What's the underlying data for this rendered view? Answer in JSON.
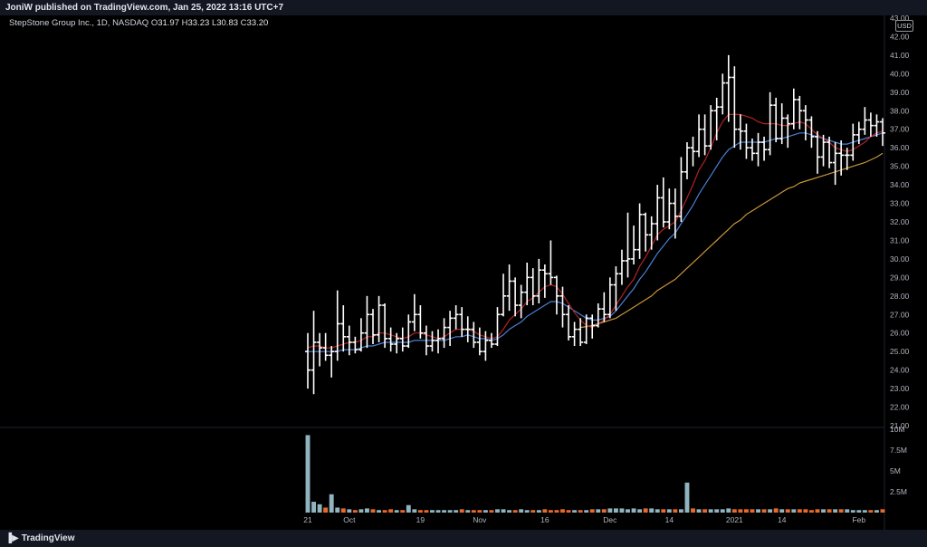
{
  "header": {
    "publisher_text": "JoniW published on TradingView.com, Jan 25, 2022 13:16 UTC+7"
  },
  "legend": {
    "symbol": "StepStone Group Inc., 1D, NASDAQ",
    "o_label": "O",
    "o_value": "31.97",
    "h_label": "H",
    "h_value": "33.23",
    "l_label": "L",
    "l_value": "30.83",
    "c_label": "C",
    "c_value": "33.20"
  },
  "currency_badge": "USD",
  "footer": {
    "brand": "TradingView",
    "brand_icon": "tradingview-logo-icon"
  },
  "colors": {
    "bars": "#ffffff",
    "ma_fast": "#b22222",
    "ma_mid": "#4a7fd4",
    "ma_slow": "#c8963c",
    "vol_up": "#8fb3bf",
    "vol_down": "#e86a2a",
    "grid": "#1a1d26",
    "axis_text": "#b2b5be"
  },
  "chart_data": {
    "type": "ohlc",
    "price_axis": {
      "ylim": [
        21,
        43
      ],
      "ticks": [
        "21.00",
        "22.00",
        "23.00",
        "24.00",
        "25.00",
        "26.00",
        "27.00",
        "28.00",
        "29.00",
        "30.00",
        "31.00",
        "32.00",
        "33.00",
        "34.00",
        "35.00",
        "36.00",
        "37.00",
        "38.00",
        "39.00",
        "40.00",
        "41.00",
        "42.00",
        "43.00"
      ]
    },
    "volume_axis": {
      "ylim": [
        0,
        10
      ],
      "ticks": [
        "2.5M",
        "5M",
        "7.5M",
        "10M"
      ],
      "tick_values": [
        2.5,
        5,
        7.5,
        10
      ]
    },
    "x_ticks": [
      {
        "label": "21",
        "index": 0
      },
      {
        "label": "Oct",
        "index": 7
      },
      {
        "label": "19",
        "index": 19
      },
      {
        "label": "Nov",
        "index": 29
      },
      {
        "label": "16",
        "index": 40
      },
      {
        "label": "Dec",
        "index": 51
      },
      {
        "label": "14",
        "index": 61
      },
      {
        "label": "2021",
        "index": 72
      },
      {
        "label": "14",
        "index": 80
      },
      {
        "label": "Feb",
        "index": 93
      }
    ],
    "ohlc": [
      [
        25.0,
        26.0,
        23.0,
        24.0
      ],
      [
        24.0,
        27.2,
        22.7,
        25.5
      ],
      [
        25.5,
        26.0,
        24.2,
        25.2
      ],
      [
        25.2,
        26.0,
        24.5,
        24.8
      ],
      [
        24.8,
        25.3,
        23.6,
        25.0
      ],
      [
        25.0,
        28.3,
        24.5,
        26.5
      ],
      [
        26.5,
        27.5,
        25.0,
        25.8
      ],
      [
        25.8,
        26.4,
        24.8,
        25.5
      ],
      [
        25.5,
        25.8,
        24.9,
        25.1
      ],
      [
        25.1,
        26.8,
        25.0,
        26.0
      ],
      [
        26.0,
        28.0,
        25.2,
        27.0
      ],
      [
        27.0,
        27.3,
        25.4,
        25.9
      ],
      [
        25.9,
        28.0,
        25.5,
        27.5
      ],
      [
        27.5,
        27.6,
        25.2,
        25.7
      ],
      [
        25.7,
        26.3,
        25.0,
        25.4
      ],
      [
        25.4,
        26.0,
        24.9,
        25.7
      ],
      [
        25.7,
        26.3,
        25.0,
        25.3
      ],
      [
        25.3,
        27.0,
        25.2,
        26.6
      ],
      [
        26.6,
        28.1,
        26.1,
        27.0
      ],
      [
        27.0,
        27.5,
        25.7,
        26.0
      ],
      [
        26.0,
        26.4,
        24.8,
        25.3
      ],
      [
        25.3,
        26.1,
        25.0,
        25.6
      ],
      [
        25.6,
        26.2,
        24.9,
        25.7
      ],
      [
        25.7,
        26.8,
        25.2,
        26.3
      ],
      [
        26.3,
        27.2,
        25.3,
        26.8
      ],
      [
        26.8,
        27.5,
        26.2,
        27.0
      ],
      [
        27.0,
        27.4,
        25.8,
        26.2
      ],
      [
        26.2,
        26.9,
        25.5,
        26.2
      ],
      [
        26.2,
        26.6,
        25.2,
        25.5
      ],
      [
        25.5,
        26.3,
        24.8,
        25.0
      ],
      [
        25.0,
        26.1,
        24.5,
        25.6
      ],
      [
        25.6,
        26.0,
        25.2,
        25.4
      ],
      [
        25.4,
        27.4,
        25.3,
        27.0
      ],
      [
        27.0,
        29.2,
        26.9,
        28.0
      ],
      [
        28.0,
        29.7,
        27.2,
        28.8
      ],
      [
        28.8,
        29.0,
        26.9,
        27.5
      ],
      [
        27.5,
        28.6,
        26.8,
        28.2
      ],
      [
        28.2,
        29.8,
        27.5,
        29.0
      ],
      [
        29.0,
        29.5,
        27.5,
        28.0
      ],
      [
        28.0,
        30.0,
        27.6,
        29.4
      ],
      [
        29.4,
        29.7,
        27.9,
        29.2
      ],
      [
        29.2,
        31.0,
        28.6,
        29.0
      ],
      [
        29.0,
        29.1,
        27.0,
        28.0
      ],
      [
        28.0,
        28.5,
        26.3,
        27.0
      ],
      [
        27.0,
        27.5,
        25.6,
        25.8
      ],
      [
        25.8,
        26.6,
        25.3,
        26.2
      ],
      [
        26.2,
        26.8,
        25.3,
        25.5
      ],
      [
        25.5,
        27.0,
        25.4,
        26.8
      ],
      [
        26.8,
        27.0,
        25.7,
        26.4
      ],
      [
        26.4,
        27.6,
        26.3,
        27.3
      ],
      [
        27.3,
        28.2,
        26.6,
        27.0
      ],
      [
        27.0,
        29.0,
        26.8,
        28.6
      ],
      [
        28.6,
        29.6,
        27.2,
        29.2
      ],
      [
        29.2,
        30.5,
        28.6,
        29.9
      ],
      [
        29.9,
        32.5,
        29.0,
        30.0
      ],
      [
        30.0,
        31.8,
        29.7,
        30.5
      ],
      [
        30.5,
        33.0,
        30.0,
        32.4
      ],
      [
        32.4,
        32.5,
        30.4,
        31.3
      ],
      [
        31.3,
        32.3,
        30.5,
        31.9
      ],
      [
        31.9,
        34.0,
        31.0,
        33.3
      ],
      [
        33.3,
        34.4,
        31.7,
        32.0
      ],
      [
        32.0,
        33.8,
        31.6,
        33.0
      ],
      [
        33.0,
        33.8,
        31.1,
        32.3
      ],
      [
        32.3,
        35.5,
        32.0,
        34.7
      ],
      [
        34.7,
        36.3,
        34.3,
        36.0
      ],
      [
        36.0,
        36.6,
        35.0,
        35.8
      ],
      [
        35.8,
        37.8,
        35.5,
        37.0
      ],
      [
        37.0,
        37.8,
        35.6,
        36.1
      ],
      [
        36.1,
        38.3,
        35.9,
        38.0
      ],
      [
        38.0,
        38.7,
        36.4,
        38.2
      ],
      [
        38.2,
        40.0,
        37.8,
        39.5
      ],
      [
        39.5,
        41.0,
        37.4,
        39.8
      ],
      [
        39.8,
        40.4,
        36.0,
        37.0
      ],
      [
        37.0,
        37.8,
        35.9,
        36.9
      ],
      [
        36.9,
        37.3,
        35.4,
        36.0
      ],
      [
        36.0,
        36.5,
        35.3,
        35.7
      ],
      [
        35.7,
        36.8,
        35.0,
        36.3
      ],
      [
        36.3,
        36.6,
        35.3,
        35.9
      ],
      [
        35.9,
        39.0,
        35.6,
        38.3
      ],
      [
        38.3,
        38.7,
        36.3,
        36.5
      ],
      [
        36.5,
        38.4,
        36.2,
        37.6
      ],
      [
        37.6,
        37.8,
        36.0,
        37.3
      ],
      [
        37.3,
        39.2,
        37.0,
        38.6
      ],
      [
        38.6,
        38.8,
        37.0,
        38.0
      ],
      [
        38.0,
        38.3,
        36.4,
        37.5
      ],
      [
        37.5,
        37.7,
        36.0,
        36.6
      ],
      [
        36.6,
        36.9,
        34.6,
        35.5
      ],
      [
        35.5,
        36.7,
        35.0,
        36.3
      ],
      [
        36.3,
        36.6,
        34.9,
        35.2
      ],
      [
        35.2,
        36.3,
        34.0,
        35.7
      ],
      [
        35.7,
        36.4,
        34.5,
        35.6
      ],
      [
        35.6,
        36.0,
        34.8,
        35.6
      ],
      [
        35.6,
        37.3,
        35.3,
        36.7
      ],
      [
        36.7,
        37.4,
        36.2,
        37.0
      ],
      [
        37.0,
        38.2,
        36.7,
        37.5
      ],
      [
        37.5,
        37.9,
        36.6,
        37.2
      ],
      [
        37.2,
        37.8,
        36.6,
        37.4
      ],
      [
        37.4,
        37.6,
        36.1,
        36.8
      ]
    ],
    "ma_fast": [
      25.2,
      25.3,
      25.3,
      25.2,
      25.2,
      25.3,
      25.4,
      25.5,
      25.5,
      25.6,
      25.8,
      25.8,
      26.0,
      26.0,
      25.9,
      25.8,
      25.7,
      25.8,
      26.0,
      26.0,
      25.9,
      25.8,
      25.7,
      25.8,
      26.0,
      26.2,
      26.2,
      26.2,
      26.1,
      25.9,
      25.8,
      25.7,
      25.8,
      26.2,
      26.7,
      27.0,
      27.3,
      27.7,
      27.9,
      28.2,
      28.5,
      28.6,
      28.5,
      28.1,
      27.6,
      27.1,
      26.7,
      26.4,
      26.3,
      26.5,
      26.7,
      27.0,
      27.5,
      28.0,
      28.5,
      28.9,
      29.6,
      30.1,
      30.7,
      31.3,
      31.6,
      31.8,
      32.0,
      32.6,
      33.3,
      34.0,
      34.8,
      35.3,
      36.0,
      36.8,
      37.4,
      37.8,
      37.8,
      37.8,
      37.7,
      37.6,
      37.4,
      37.3,
      37.3,
      37.3,
      37.2,
      37.2,
      37.3,
      37.4,
      37.3,
      37.0,
      36.7,
      36.5,
      36.3,
      36.0,
      35.9,
      35.8,
      35.9,
      36.1,
      36.3,
      36.6,
      36.8,
      36.9
    ],
    "ma_mid": [
      25.0,
      25.0,
      25.0,
      25.0,
      25.0,
      25.0,
      25.1,
      25.1,
      25.1,
      25.2,
      25.3,
      25.3,
      25.4,
      25.5,
      25.5,
      25.5,
      25.5,
      25.5,
      25.6,
      25.6,
      25.6,
      25.6,
      25.6,
      25.6,
      25.7,
      25.8,
      25.8,
      25.9,
      25.8,
      25.7,
      25.7,
      25.6,
      25.7,
      25.9,
      26.2,
      26.4,
      26.6,
      26.9,
      27.1,
      27.3,
      27.5,
      27.7,
      27.7,
      27.6,
      27.4,
      27.2,
      27.0,
      26.8,
      26.7,
      26.7,
      26.8,
      26.9,
      27.2,
      27.6,
      28.0,
      28.4,
      28.9,
      29.3,
      29.8,
      30.3,
      30.7,
      31.1,
      31.4,
      31.9,
      32.4,
      32.9,
      33.5,
      34.0,
      34.5,
      35.0,
      35.5,
      35.9,
      36.1,
      36.3,
      36.3,
      36.3,
      36.3,
      36.3,
      36.4,
      36.5,
      36.5,
      36.6,
      36.7,
      36.8,
      36.8,
      36.7,
      36.6,
      36.5,
      36.4,
      36.3,
      36.2,
      36.2,
      36.3,
      36.4,
      36.5,
      36.6,
      36.7,
      36.8
    ],
    "ma_slow": [
      null,
      null,
      null,
      null,
      null,
      null,
      null,
      null,
      null,
      null,
      null,
      null,
      null,
      null,
      null,
      null,
      null,
      null,
      null,
      null,
      null,
      null,
      null,
      null,
      null,
      null,
      null,
      null,
      null,
      null,
      null,
      null,
      null,
      null,
      null,
      null,
      null,
      null,
      null,
      null,
      null,
      null,
      null,
      null,
      null,
      null,
      26.3,
      26.35,
      26.4,
      26.5,
      26.6,
      26.7,
      26.8,
      27.0,
      27.2,
      27.4,
      27.6,
      27.8,
      28.0,
      28.3,
      28.5,
      28.7,
      28.9,
      29.2,
      29.5,
      29.8,
      30.1,
      30.4,
      30.7,
      31.0,
      31.3,
      31.6,
      31.9,
      32.1,
      32.4,
      32.6,
      32.8,
      33.0,
      33.2,
      33.4,
      33.6,
      33.8,
      33.9,
      34.1,
      34.2,
      34.3,
      34.4,
      34.5,
      34.6,
      34.7,
      34.8,
      34.9,
      35.0,
      35.1,
      35.2,
      35.35,
      35.5,
      35.7
    ],
    "volume": [
      9.3,
      1.3,
      1.0,
      0.6,
      2.2,
      0.6,
      0.5,
      0.4,
      0.3,
      0.4,
      0.5,
      0.4,
      0.3,
      0.3,
      0.4,
      0.3,
      0.3,
      0.9,
      0.4,
      0.3,
      0.3,
      0.3,
      0.3,
      0.3,
      0.3,
      0.3,
      0.4,
      0.3,
      0.3,
      0.3,
      0.3,
      0.3,
      0.4,
      0.4,
      0.3,
      0.3,
      0.4,
      0.3,
      0.3,
      0.3,
      0.4,
      0.3,
      0.3,
      0.4,
      0.3,
      0.3,
      0.3,
      0.3,
      0.4,
      0.4,
      0.4,
      0.5,
      0.5,
      0.5,
      0.4,
      0.5,
      0.4,
      0.5,
      0.5,
      0.4,
      0.4,
      0.4,
      0.4,
      0.4,
      3.6,
      0.5,
      0.4,
      0.4,
      0.4,
      0.4,
      0.4,
      0.5,
      0.4,
      0.4,
      0.4,
      0.4,
      0.4,
      0.4,
      0.4,
      0.5,
      0.4,
      0.4,
      0.4,
      0.4,
      0.4,
      0.3,
      0.4,
      0.4,
      0.4,
      0.4,
      0.4,
      0.4,
      0.3,
      0.3,
      0.3,
      0.3,
      0.3,
      0.4
    ],
    "volume_up": [
      true,
      true,
      true,
      false,
      true,
      true,
      false,
      true,
      false,
      true,
      true,
      false,
      true,
      false,
      false,
      true,
      false,
      true,
      true,
      false,
      false,
      true,
      true,
      true,
      true,
      true,
      false,
      true,
      false,
      false,
      true,
      false,
      true,
      true,
      true,
      false,
      true,
      true,
      false,
      true,
      false,
      false,
      false,
      false,
      false,
      true,
      false,
      true,
      false,
      true,
      false,
      true,
      true,
      true,
      true,
      true,
      true,
      false,
      true,
      true,
      false,
      true,
      false,
      true,
      true,
      false,
      true,
      false,
      true,
      true,
      true,
      true,
      false,
      false,
      false,
      false,
      true,
      false,
      true,
      false,
      true,
      false,
      true,
      false,
      false,
      false,
      false,
      true,
      false,
      true,
      false,
      true,
      true,
      true,
      true,
      false,
      true,
      false
    ]
  }
}
